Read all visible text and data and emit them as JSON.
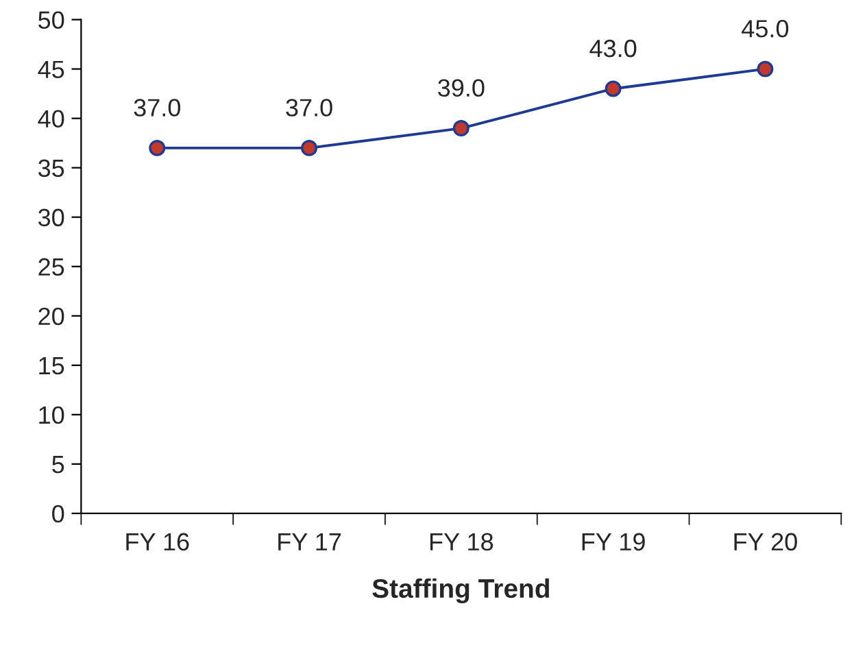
{
  "chart_data": {
    "type": "line",
    "xlabel": "Staffing Trend",
    "categories": [
      "FY 16",
      "FY 17",
      "FY 18",
      "FY 19",
      "FY 20"
    ],
    "series": [
      {
        "color": "#1f3a93",
        "colors": [
          "#c0392b",
          "#c0392b",
          "#c0392b",
          "#c0392b",
          "#c0392b"
        ],
        "values": [
          37.0,
          37.0,
          39.0,
          43.0,
          45.0
        ],
        "value_labels": [
          "37.0",
          "37.0",
          "39.0",
          "43.0",
          "45.0"
        ]
      }
    ],
    "ylim": [
      0,
      50
    ],
    "yticks": [
      0,
      5,
      10,
      15,
      20,
      25,
      30,
      35,
      40,
      45,
      50
    ],
    "marker": "circle",
    "line_style": "solid",
    "grid": false,
    "legend": false
  }
}
